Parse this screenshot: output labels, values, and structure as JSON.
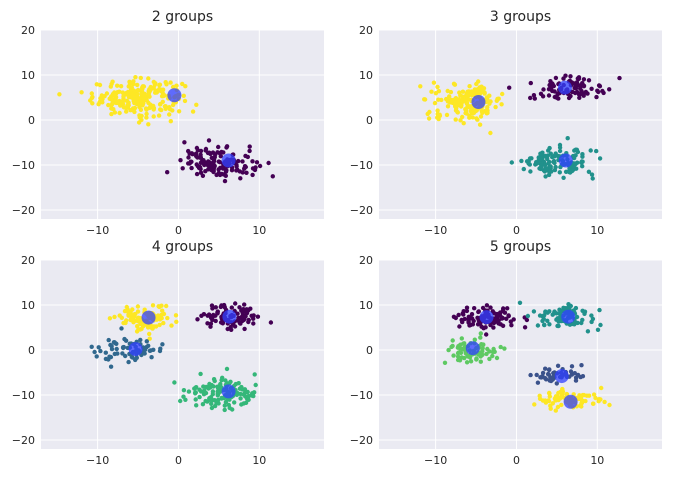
{
  "figure": {
    "background": "#ffffff",
    "axes_background": "#eaeaf2",
    "grid_color": "#ffffff"
  },
  "chart_data": [
    {
      "type": "scatter",
      "title": "2 groups",
      "xlabel": "",
      "ylabel": "",
      "xlim": [
        -17,
        18
      ],
      "ylim": [
        -22,
        20
      ],
      "xticks": [
        -10,
        0,
        10
      ],
      "yticks": [
        -20,
        -10,
        0,
        10,
        20
      ],
      "grid": true,
      "clusters": [
        {
          "color": "#fde725",
          "center": [
            -5,
            5
          ],
          "spread": [
            5,
            3.5
          ],
          "count": 230
        },
        {
          "color": "#440154",
          "center": [
            5,
            -9.5
          ],
          "spread": [
            4,
            3
          ],
          "count": 150
        }
      ],
      "centroids": [
        [
          -0.5,
          5.5
        ],
        [
          6.2,
          -9
        ]
      ],
      "centroid_color": "#3040ff"
    },
    {
      "type": "scatter",
      "title": "3 groups",
      "xlabel": "",
      "ylabel": "",
      "xlim": [
        -17,
        18
      ],
      "ylim": [
        -22,
        20
      ],
      "xticks": [
        -10,
        0,
        10
      ],
      "yticks": [
        -20,
        -10,
        0,
        10,
        20
      ],
      "grid": true,
      "clusters": [
        {
          "color": "#fde725",
          "center": [
            -6,
            4
          ],
          "spread": [
            4,
            3.5
          ],
          "count": 170
        },
        {
          "color": "#440154",
          "center": [
            6,
            7
          ],
          "spread": [
            4,
            2.5
          ],
          "count": 90
        },
        {
          "color": "#21918c",
          "center": [
            5,
            -9.5
          ],
          "spread": [
            4,
            3
          ],
          "count": 130
        }
      ],
      "centroids": [
        [
          -4.7,
          4
        ],
        [
          6,
          7.2
        ],
        [
          6.1,
          -9
        ]
      ],
      "centroid_color": "#3040ff"
    },
    {
      "type": "scatter",
      "title": "4 groups",
      "xlabel": "",
      "ylabel": "",
      "xlim": [
        -17,
        18
      ],
      "ylim": [
        -22,
        20
      ],
      "xticks": [
        -10,
        0,
        10
      ],
      "yticks": [
        -20,
        -10,
        0,
        10,
        20
      ],
      "grid": true,
      "clusters": [
        {
          "color": "#fde725",
          "center": [
            -4,
            7
          ],
          "spread": [
            3,
            2.5
          ],
          "count": 110
        },
        {
          "color": "#440154",
          "center": [
            6.5,
            7.5
          ],
          "spread": [
            3.5,
            2.5
          ],
          "count": 90
        },
        {
          "color": "#31688e",
          "center": [
            -6,
            0
          ],
          "spread": [
            3.5,
            2.5
          ],
          "count": 70
        },
        {
          "color": "#35b779",
          "center": [
            5.5,
            -9.5
          ],
          "spread": [
            4,
            3
          ],
          "count": 130
        }
      ],
      "centroids": [
        [
          -3.7,
          7.2
        ],
        [
          6.3,
          7.4
        ],
        [
          -5.3,
          0.2
        ],
        [
          6.2,
          -9.2
        ]
      ],
      "centroid_color": "#3040ff"
    },
    {
      "type": "scatter",
      "title": "5 groups",
      "xlabel": "",
      "ylabel": "",
      "xlim": [
        -17,
        18
      ],
      "ylim": [
        -22,
        20
      ],
      "xticks": [
        -10,
        0,
        10
      ],
      "yticks": [
        -20,
        -10,
        0,
        10,
        20
      ],
      "grid": true,
      "clusters": [
        {
          "color": "#440154",
          "center": [
            -3.5,
            7
          ],
          "spread": [
            3.5,
            2.5
          ],
          "count": 100
        },
        {
          "color": "#21918c",
          "center": [
            6,
            7.5
          ],
          "spread": [
            3.5,
            2.5
          ],
          "count": 85
        },
        {
          "color": "#5ec962",
          "center": [
            -5.5,
            0
          ],
          "spread": [
            3.5,
            2.5
          ],
          "count": 75
        },
        {
          "color": "#3b528b",
          "center": [
            5,
            -5.5
          ],
          "spread": [
            3,
            1.8
          ],
          "count": 50
        },
        {
          "color": "#fde725",
          "center": [
            6.5,
            -11
          ],
          "spread": [
            3.5,
            2
          ],
          "count": 80
        }
      ],
      "centroids": [
        [
          -3.7,
          7.3
        ],
        [
          6.4,
          7.4
        ],
        [
          -5.4,
          0.4
        ],
        [
          5.6,
          -5.8
        ],
        [
          6.7,
          -11.5
        ]
      ],
      "centroid_color": "#3040ff"
    }
  ]
}
